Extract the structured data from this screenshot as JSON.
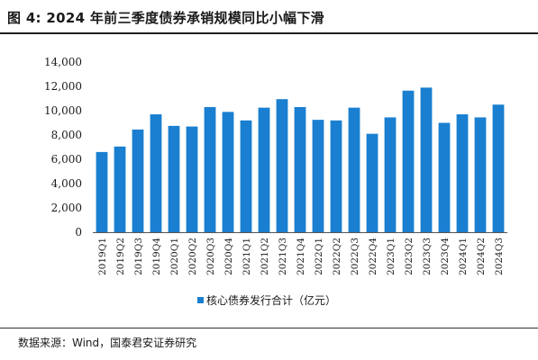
{
  "figure": {
    "title": "图  4:  2024 年前三季度债券承销规模同比小幅下滑",
    "source": "数据来源：Wind，国泰君安证券研究"
  },
  "chart_data": {
    "type": "bar",
    "title": "",
    "xlabel": "",
    "ylabel": "",
    "categories": [
      "2019Q1",
      "2019Q2",
      "2019Q3",
      "2019Q4",
      "2020Q1",
      "2020Q2",
      "2020Q3",
      "2020Q4",
      "2021Q1",
      "2021Q2",
      "2021Q3",
      "2021Q4",
      "2022Q1",
      "2022Q2",
      "2022Q3",
      "2022Q4",
      "2023Q1",
      "2023Q2",
      "2023Q3",
      "2023Q4",
      "2024Q1",
      "2024Q2",
      "2024Q3"
    ],
    "series": [
      {
        "name": "核心债券发行合计（亿元）",
        "color": "#1a7fd0",
        "values": [
          6600,
          7050,
          8450,
          9700,
          8750,
          8700,
          10300,
          9900,
          9200,
          10250,
          10950,
          10300,
          9250,
          9200,
          10250,
          8100,
          9450,
          11650,
          11900,
          9000,
          9700,
          9450,
          10500
        ]
      }
    ],
    "ylim": [
      0,
      14000
    ],
    "yticks": [
      0,
      2000,
      4000,
      6000,
      8000,
      10000,
      12000,
      14000
    ],
    "ytick_labels": [
      "0",
      "2,000",
      "4,000",
      "6,000",
      "8,000",
      "10,000",
      "12,000",
      "14,000"
    ],
    "grid": false,
    "legend_position": "bottom"
  }
}
